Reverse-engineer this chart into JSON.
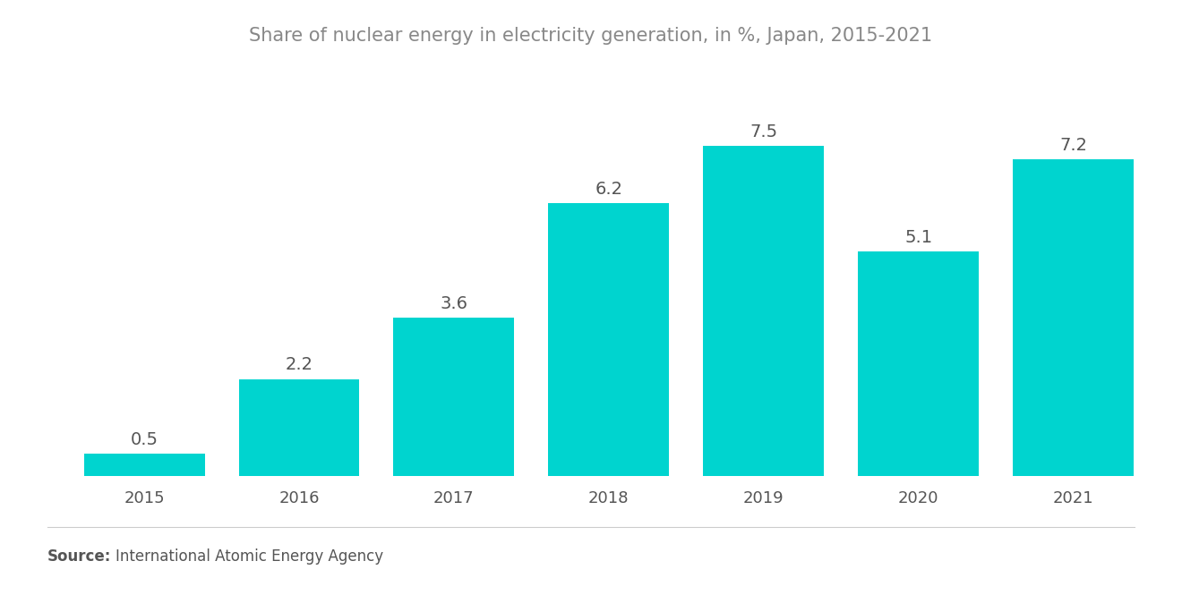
{
  "title": "Share of nuclear energy in electricity generation, in %, Japan, 2015-2021",
  "categories": [
    "2015",
    "2016",
    "2017",
    "2018",
    "2019",
    "2020",
    "2021"
  ],
  "values": [
    0.5,
    2.2,
    3.6,
    6.2,
    7.5,
    5.1,
    7.2
  ],
  "bar_color": "#00D4CF",
  "label_color": "#555555",
  "title_color": "#888888",
  "source_bold": "Source:",
  "source_text": "International Atomic Energy Agency",
  "background_color": "#ffffff",
  "ylim": [
    0,
    9.2
  ],
  "bar_width": 0.78,
  "title_fontsize": 15,
  "tick_fontsize": 13,
  "source_fontsize": 12,
  "value_label_fontsize": 14
}
